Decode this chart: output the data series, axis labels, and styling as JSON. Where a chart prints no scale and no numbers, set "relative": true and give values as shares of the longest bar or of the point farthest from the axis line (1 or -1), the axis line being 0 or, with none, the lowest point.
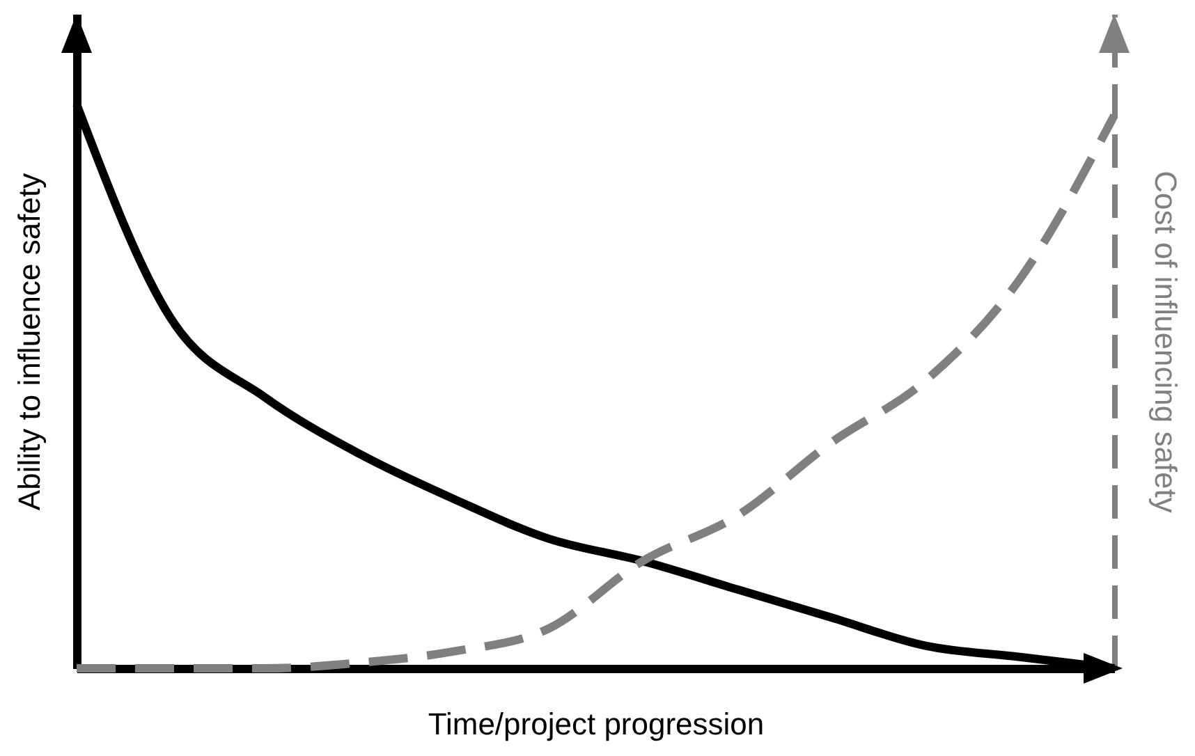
{
  "chart_data": {
    "type": "line",
    "relative": true,
    "xlabel": "Time/project progression",
    "ylabel": "Ability to influence safety",
    "y2label": "Cost of influencing safety",
    "categories": [
      null,
      null,
      null,
      null,
      null,
      null,
      null,
      null,
      null,
      null,
      null,
      null
    ],
    "series": [
      {
        "color": "#000000",
        "line_style": "solid",
        "values": [
          1,
          0.62,
          0.48,
          0.38,
          0.3,
          0.23,
          0.19,
          0.14,
          0.09,
          0.04,
          0.02,
          0
        ]
      },
      {
        "color": "#808080",
        "line_style": "dashed",
        "values": [
          0,
          0,
          0,
          0.01,
          0.03,
          0.07,
          0.19,
          0.27,
          0.4,
          0.51,
          0.69,
          0.98
        ]
      }
    ]
  }
}
